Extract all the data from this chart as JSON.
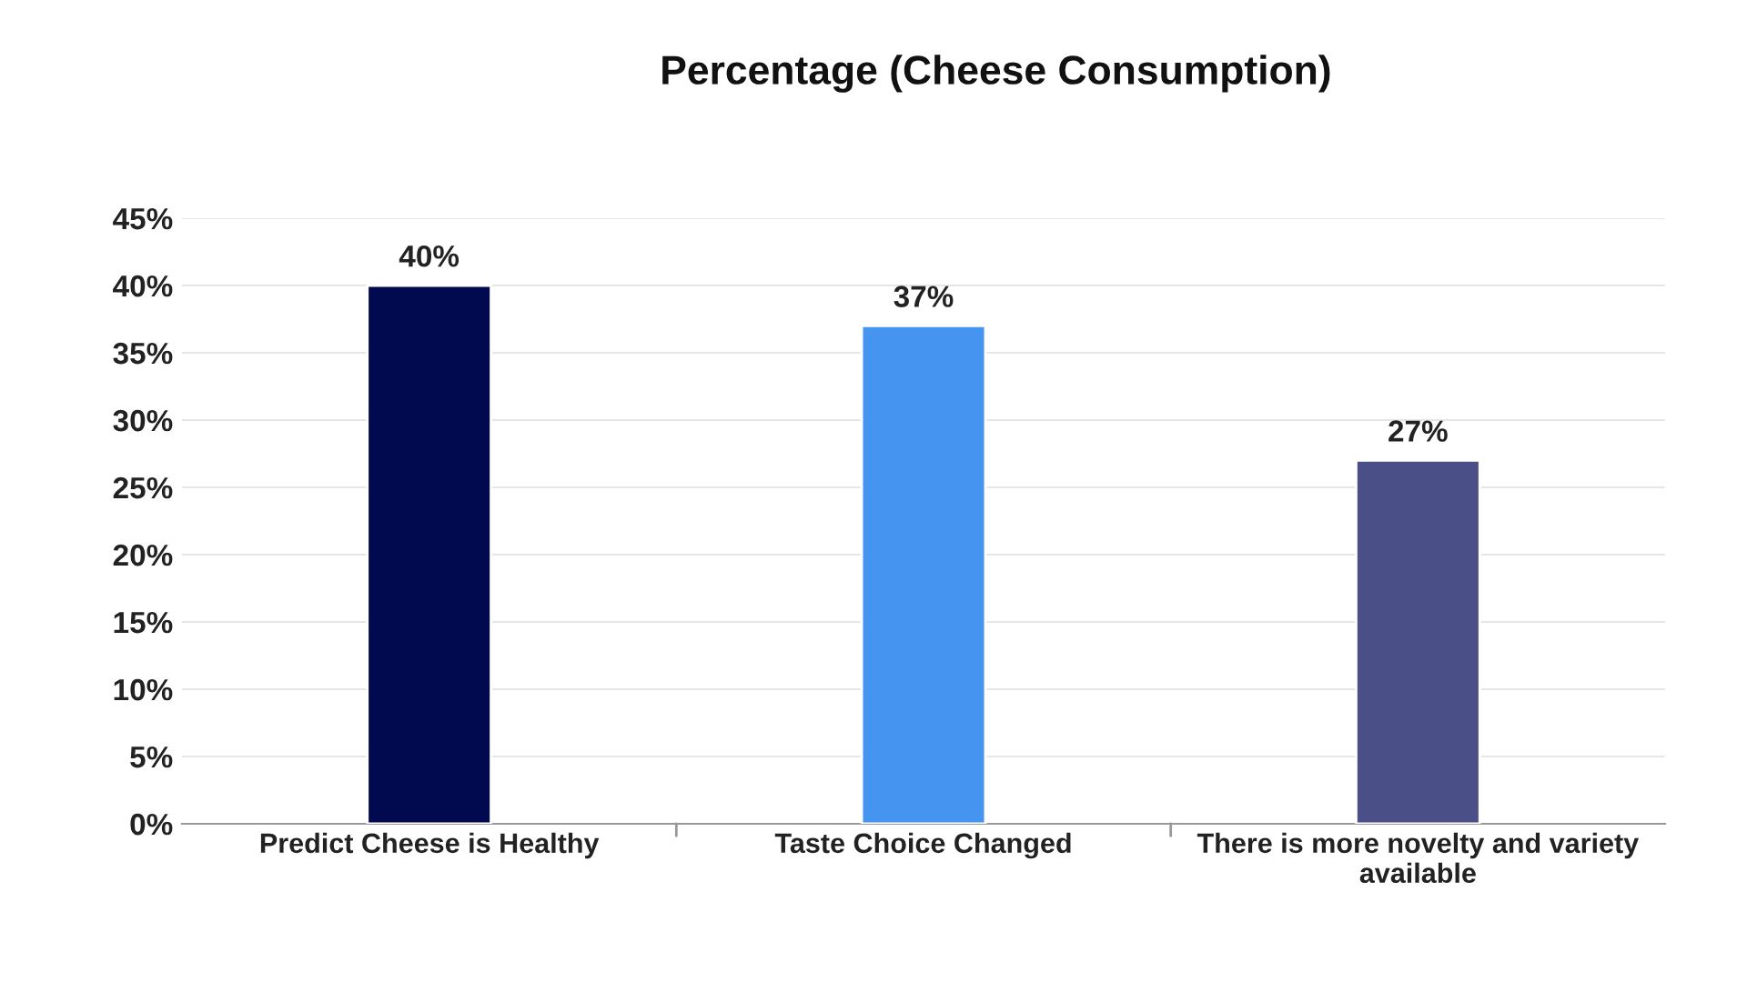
{
  "chart_data": {
    "type": "bar",
    "title": "Percentage (Cheese Consumption)",
    "categories": [
      "Predict Cheese is Healthy",
      "Taste Choice Changed",
      "There is more novelty and variety available"
    ],
    "values": [
      40,
      37,
      27
    ],
    "colors": [
      "#020a4f",
      "#4594ef",
      "#4b4f87"
    ],
    "value_labels": [
      "40%",
      "37%",
      "27%"
    ],
    "ylim": [
      0,
      45
    ],
    "yticks": [
      {
        "value": 0,
        "label": "0%"
      },
      {
        "value": 5,
        "label": "5%"
      },
      {
        "value": 10,
        "label": "10%"
      },
      {
        "value": 15,
        "label": "15%"
      },
      {
        "value": 20,
        "label": "20%"
      },
      {
        "value": 25,
        "label": "25%"
      },
      {
        "value": 30,
        "label": "30%"
      },
      {
        "value": 35,
        "label": "35%"
      },
      {
        "value": 40,
        "label": "40%"
      },
      {
        "value": 45,
        "label": "45%"
      }
    ],
    "grid": "y",
    "legend": false
  }
}
